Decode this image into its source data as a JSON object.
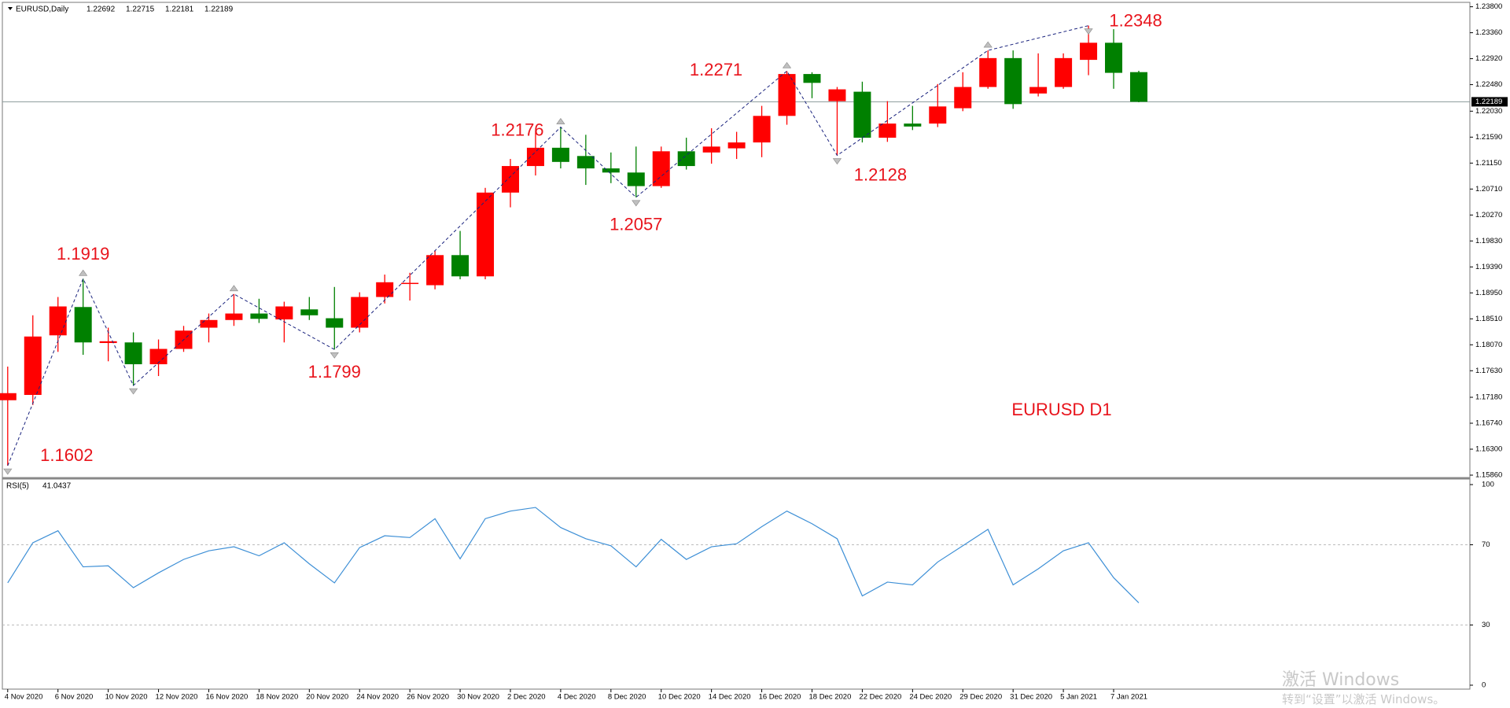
{
  "chart_data": [
    {
      "type": "candlestick",
      "title": "EURUSD,Daily",
      "label": "EURUSD D1",
      "categories": [
        "4 Nov 2020",
        null,
        "6 Nov 2020",
        null,
        "10 Nov 2020",
        null,
        "12 Nov 2020",
        null,
        "16 Nov 2020",
        null,
        "18 Nov 2020",
        null,
        "20 Nov 2020",
        null,
        "24 Nov 2020",
        null,
        "26 Nov 2020",
        null,
        "30 Nov 2020",
        null,
        "2 Dec 2020",
        null,
        "4 Dec 2020",
        null,
        "8 Dec 2020",
        null,
        "10 Dec 2020",
        null,
        "14 Dec 2020",
        null,
        "16 Dec 2020",
        null,
        "18 Dec 2020",
        null,
        "22 Dec 2020",
        null,
        "24 Dec 2020",
        null,
        "29 Dec 2020",
        null,
        "31 Dec 2020",
        null,
        "5 Jan 2021",
        null,
        "7 Jan 2021",
        null
      ],
      "open": [
        1.1713,
        1.1722,
        1.1823,
        1.1871,
        1.181,
        1.1811,
        1.1774,
        1.18,
        1.1836,
        1.1849,
        1.186,
        1.185,
        1.1867,
        1.1852,
        1.1836,
        1.1888,
        1.191,
        1.1908,
        1.1959,
        1.1923,
        1.2065,
        1.211,
        1.2141,
        1.2127,
        1.2106,
        1.2099,
        1.2076,
        1.2135,
        1.2133,
        1.214,
        1.215,
        1.2195,
        1.2266,
        1.222,
        1.2236,
        1.2158,
        1.2182,
        1.2182,
        1.2208,
        1.2244,
        1.2293,
        1.2233,
        1.2244,
        1.229,
        1.2319,
        1.22692
      ],
      "high": [
        1.177,
        1.1857,
        1.1888,
        1.1919,
        1.1836,
        1.1828,
        1.1816,
        1.1839,
        1.186,
        1.1893,
        1.1885,
        1.188,
        1.1888,
        1.1905,
        1.1896,
        1.1926,
        1.1929,
        1.1967,
        1.2,
        1.2073,
        1.2122,
        1.217,
        1.2176,
        1.2163,
        1.2133,
        1.2143,
        1.2143,
        1.2158,
        1.2174,
        1.2168,
        1.2212,
        1.2271,
        1.2269,
        1.2244,
        1.2253,
        1.222,
        1.2212,
        1.2249,
        1.2269,
        1.2306,
        1.2306,
        1.2301,
        1.2301,
        1.2348,
        1.2342,
        1.22715
      ],
      "low": [
        1.1602,
        1.1705,
        1.1795,
        1.179,
        1.1779,
        1.1738,
        1.1754,
        1.1795,
        1.1811,
        1.1839,
        1.1844,
        1.1811,
        1.1849,
        1.1799,
        1.1828,
        1.1877,
        1.1882,
        1.1901,
        1.1918,
        1.1918,
        1.204,
        1.2094,
        1.2106,
        1.2078,
        1.2081,
        1.2057,
        1.2073,
        1.2104,
        1.2114,
        1.2122,
        1.2125,
        1.218,
        1.2225,
        1.2128,
        1.215,
        1.2151,
        1.2171,
        1.2176,
        1.2203,
        1.2241,
        1.2207,
        1.2228,
        1.2241,
        1.2264,
        1.2241,
        1.22181
      ],
      "close": [
        1.1725,
        1.1821,
        1.1872,
        1.1811,
        1.1813,
        1.1774,
        1.18,
        1.1831,
        1.1849,
        1.186,
        1.1851,
        1.1872,
        1.1857,
        1.1836,
        1.1888,
        1.1913,
        1.1912,
        1.1959,
        1.1923,
        1.2065,
        1.211,
        1.2141,
        1.2117,
        1.2106,
        1.2099,
        1.2076,
        1.2135,
        1.211,
        1.2143,
        1.215,
        1.2195,
        1.2266,
        1.2251,
        1.224,
        1.2158,
        1.2182,
        1.2177,
        1.2211,
        1.2244,
        1.2293,
        1.2215,
        1.2244,
        1.2293,
        1.2319,
        1.2268,
        1.22189
      ],
      "up_color": "#ff0000",
      "down_color": "#008000",
      "current_price": 1.22189,
      "zigzag": {
        "x": [
          0,
          3,
          5,
          9,
          13,
          22,
          25,
          31,
          33,
          39,
          43
        ],
        "values": [
          1.1602,
          1.1919,
          1.1738,
          1.1893,
          1.1799,
          1.2176,
          1.2057,
          1.2271,
          1.2128,
          1.2306,
          1.2348
        ],
        "value_labels": [
          "1.1602",
          "1.1919",
          null,
          null,
          "1.1799",
          "1.2176",
          "1.2057",
          "1.2271",
          "1.2128",
          null,
          "1.2348"
        ],
        "color": "#1a237e",
        "label_color": "#e8141c"
      },
      "ylim": [
        1.1586,
        1.238
      ],
      "yticks": [
        {
          "value": 1.238,
          "label": "1.23800"
        },
        {
          "value": 1.2336,
          "label": "1.23360"
        },
        {
          "value": 1.2292,
          "label": "1.22920"
        },
        {
          "value": 1.2248,
          "label": "1.22480"
        },
        {
          "value": 1.2203,
          "label": "1.22030"
        },
        {
          "value": 1.2159,
          "label": "1.21590"
        },
        {
          "value": 1.2115,
          "label": "1.21150"
        },
        {
          "value": 1.2071,
          "label": "1.20710"
        },
        {
          "value": 1.2027,
          "label": "1.20270"
        },
        {
          "value": 1.1983,
          "label": "1.19830"
        },
        {
          "value": 1.1939,
          "label": "1.19390"
        },
        {
          "value": 1.1895,
          "label": "1.18950"
        },
        {
          "value": 1.1851,
          "label": "1.18510"
        },
        {
          "value": 1.1807,
          "label": "1.18070"
        },
        {
          "value": 1.1763,
          "label": "1.17630"
        },
        {
          "value": 1.1718,
          "label": "1.17180"
        },
        {
          "value": 1.1674,
          "label": "1.16740"
        },
        {
          "value": 1.163,
          "label": "1.16300"
        },
        {
          "value": 1.1586,
          "label": "1.15860"
        }
      ]
    },
    {
      "type": "line",
      "title": "RSI(5)",
      "color": "#3d8fd6",
      "values": [
        51,
        71,
        77,
        59,
        59.5,
        48.6,
        56,
        62.7,
        67,
        69,
        64.5,
        71,
        60.5,
        51,
        68.6,
        74.5,
        73.6,
        83,
        63,
        83,
        86.8,
        88.6,
        78.6,
        73,
        69.5,
        59,
        72.7,
        62.7,
        69,
        70.5,
        79,
        86.8,
        80.5,
        73,
        44.5,
        51.4,
        50,
        61.4,
        69.5,
        77.7,
        50,
        58,
        67,
        71,
        53.6,
        41.0437
      ],
      "ylim": [
        0,
        100
      ],
      "yticks": [
        0,
        30,
        70,
        100
      ],
      "levels": [
        30,
        70
      ]
    }
  ],
  "watermark": {
    "title": "激活 Windows",
    "subtitle": "转到“设置”以激活 Windows。"
  }
}
